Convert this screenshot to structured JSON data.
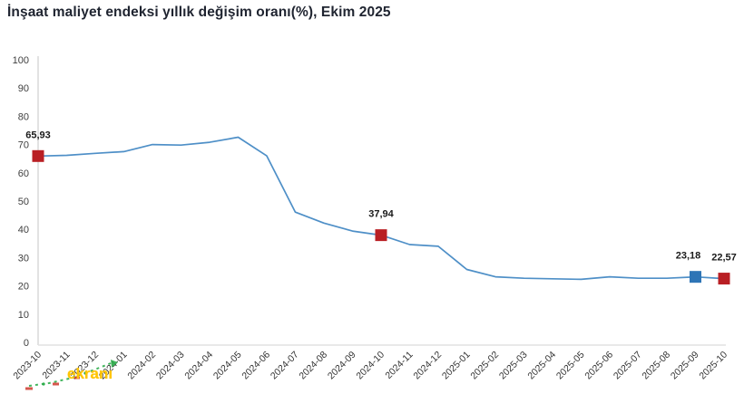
{
  "title": "İnşaat maliyet endeksi yıllık değişim oranı(%), Ekim 2025",
  "watermark": {
    "text": "ekranı",
    "text_color": "#FFC400",
    "dash_color": "#2ead4b",
    "tick_color": "#d03a2f"
  },
  "colors": {
    "line": "#4e8fc7",
    "marker_red": "#b91f24",
    "marker_blue": "#2e75b6",
    "axis": "#e2e2e2",
    "tick_text": "#404040",
    "data_label_text": "#1a1a1a",
    "title_text": "#1f2430"
  },
  "chart_data": {
    "type": "line",
    "title": "İnşaat maliyet endeksi yıllık değişim oranı(%), Ekim 2025",
    "xlabel": "",
    "ylabel": "",
    "ylim": [
      0,
      100
    ],
    "yticks": [
      0,
      10,
      20,
      30,
      40,
      50,
      60,
      70,
      80,
      90,
      100
    ],
    "grid": false,
    "legend": false,
    "x": [
      "2023-10",
      "2023-11",
      "2023-12",
      "2024-01",
      "2024-02",
      "2024-03",
      "2024-04",
      "2024-05",
      "2024-06",
      "2024-07",
      "2024-08",
      "2024-09",
      "2024-10",
      "2024-11",
      "2024-12",
      "2025-01",
      "2025-02",
      "2025-03",
      "2025-04",
      "2025-05",
      "2025-06",
      "2025-07",
      "2025-08",
      "2025-09",
      "2025-10"
    ],
    "values": [
      65.93,
      66.2,
      66.9,
      67.5,
      70.0,
      69.8,
      70.8,
      72.6,
      66.0,
      46.1,
      42.2,
      39.4,
      37.94,
      34.6,
      34.0,
      25.8,
      23.2,
      22.7,
      22.5,
      22.3,
      23.2,
      22.7,
      22.7,
      23.18,
      22.57
    ],
    "annotations": [
      {
        "index": 0,
        "x": "2023-10",
        "value": 65.93,
        "label": "65,93",
        "marker": "red-square"
      },
      {
        "index": 12,
        "x": "2024-10",
        "value": 37.94,
        "label": "37,94",
        "marker": "red-square"
      },
      {
        "index": 23,
        "x": "2025-09",
        "value": 23.18,
        "label": "23,18",
        "marker": "blue-square"
      },
      {
        "index": 24,
        "x": "2025-10",
        "value": 22.57,
        "label": "22,57",
        "marker": "red-square"
      }
    ]
  }
}
